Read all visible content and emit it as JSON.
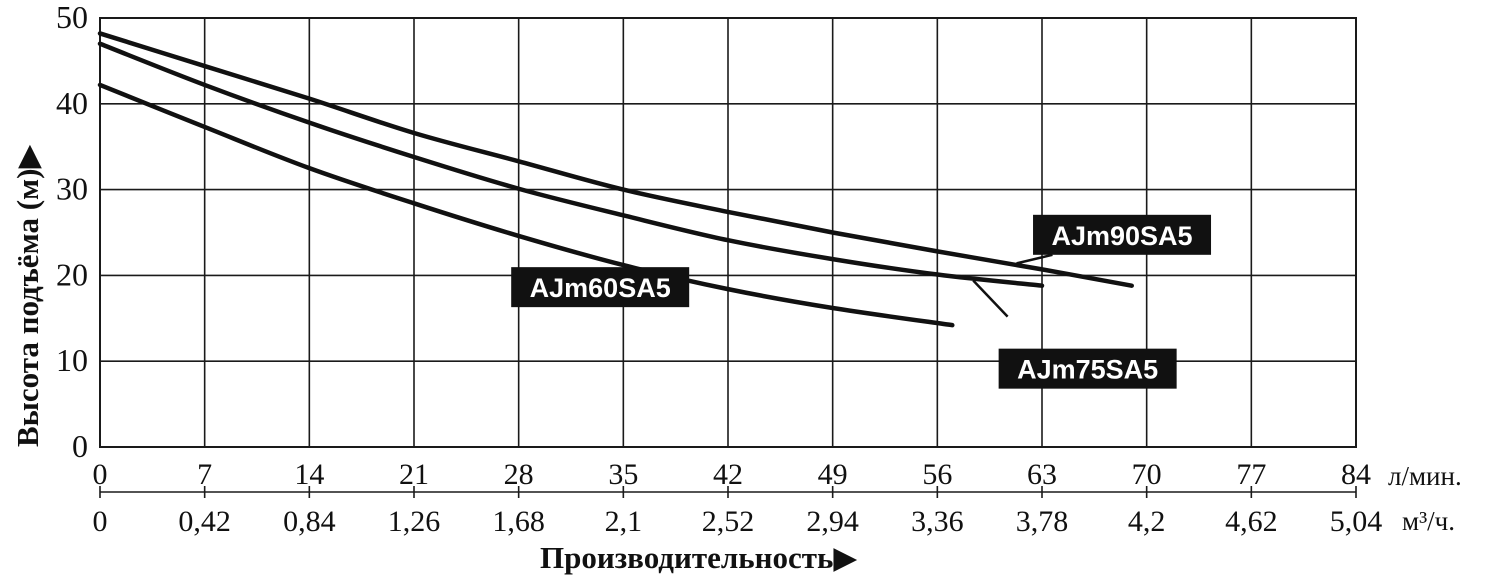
{
  "chart_data": {
    "type": "line",
    "title": "",
    "ylabel": "Высота подъёма (м)",
    "ylabel_arrow": "▶",
    "xlabel": "Производительность",
    "xlabel_arrow": "▶",
    "ylim": [
      0,
      50
    ],
    "yticks": [
      "0",
      "10",
      "20",
      "30",
      "40",
      "50"
    ],
    "xlim": [
      0,
      84
    ],
    "xticks_lmin": [
      "0",
      "7",
      "14",
      "21",
      "28",
      "35",
      "42",
      "49",
      "56",
      "63",
      "70",
      "77",
      "84"
    ],
    "xticks_m3h": [
      "0",
      "0,42",
      "0,84",
      "1,26",
      "1,68",
      "2,1",
      "2,52",
      "2,94",
      "3,36",
      "3,78",
      "4,2",
      "4,62",
      "5,04"
    ],
    "x_unit_primary": "л/мин.",
    "x_unit_secondary": "м³/ч.",
    "grid": true,
    "series": [
      {
        "name": "AJm60SA5",
        "x": [
          0,
          7,
          14,
          21,
          28,
          35,
          42,
          49,
          57
        ],
        "y": [
          42.2,
          37.3,
          32.5,
          28.4,
          24.6,
          21.2,
          18.4,
          16.2,
          14.2
        ]
      },
      {
        "name": "AJm75SA5",
        "x": [
          0,
          7,
          14,
          21,
          28,
          35,
          42,
          49,
          56,
          63
        ],
        "y": [
          47.0,
          42.2,
          37.8,
          33.8,
          30.1,
          27.0,
          24.1,
          21.9,
          20.1,
          18.8
        ]
      },
      {
        "name": "AJm90SA5",
        "x": [
          0,
          7,
          14,
          21,
          28,
          35,
          42,
          49,
          56,
          63,
          69
        ],
        "y": [
          48.2,
          44.4,
          40.6,
          36.6,
          33.3,
          30.0,
          27.4,
          25.0,
          22.8,
          20.7,
          18.8
        ]
      }
    ]
  }
}
